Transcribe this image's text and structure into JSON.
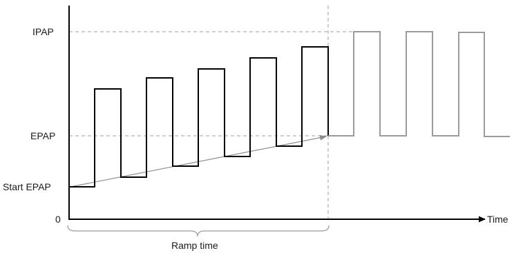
{
  "labels": {
    "ipap": "IPAP",
    "epap": "EPAP",
    "start_epap": "Start EPAP",
    "zero": "0",
    "time": "Time",
    "ramp_time": "Ramp time"
  },
  "colors": {
    "axis": "#000000",
    "ramp_waveform": "#000000",
    "steady_waveform": "#9a9a9a",
    "ramp_arrow": "#8c8c8c",
    "guide_lines": "#9e9e9e",
    "brace": "#9a9a9a",
    "text": "#1a1a1a"
  }
}
